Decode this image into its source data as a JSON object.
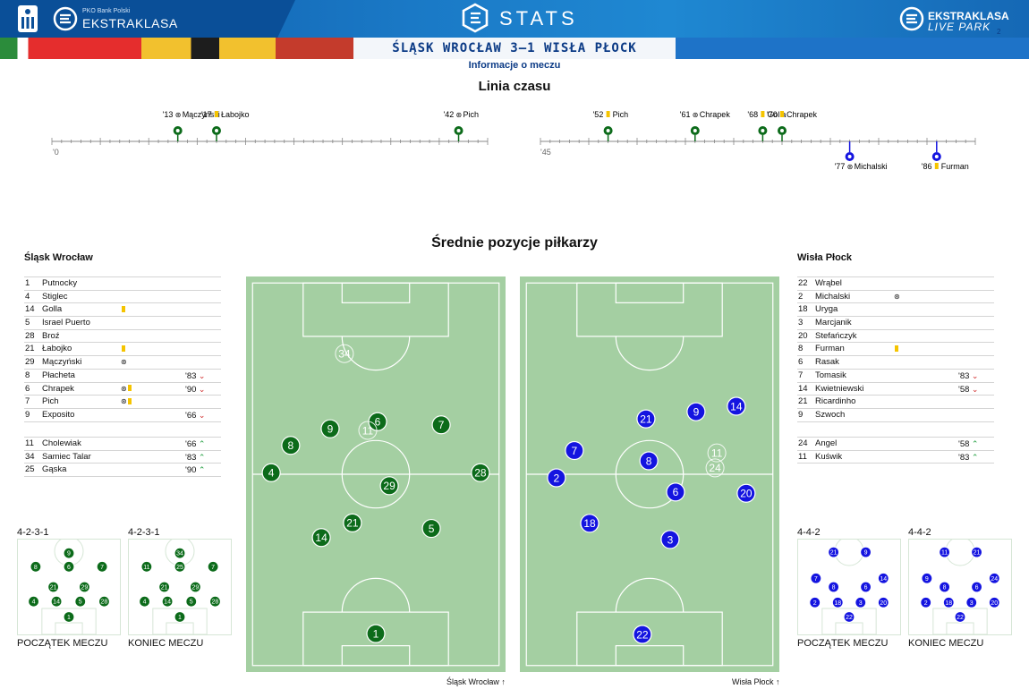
{
  "header": {
    "brand_small": "PKO Bank Polski",
    "brand": "EKSTRAKLASA",
    "stats": "STATS",
    "right_brand_1": "EKSTRAKLASA",
    "right_brand_2": "LIVE PARK",
    "badge": "2"
  },
  "match": {
    "title": "ŚLĄSK WROCŁAW 3–1 WISŁA PŁOCK",
    "subtitle": "Informacje o meczu"
  },
  "timeline": {
    "title": "Linia czasu",
    "half1_label": "'0",
    "half2_label": "'45",
    "home_events": [
      {
        "minute": 13,
        "time": "'13",
        "type": "goal",
        "player": "Mączyński"
      },
      {
        "minute": 17,
        "time": "'17",
        "type": "yellow",
        "player": "Łabojko"
      },
      {
        "minute": 42,
        "time": "'42",
        "type": "goal",
        "player": "Pich"
      },
      {
        "minute": 52,
        "time": "'52",
        "type": "yellow",
        "player": "Pich"
      },
      {
        "minute": 61,
        "time": "'61",
        "type": "goal",
        "player": "Chrapek"
      },
      {
        "minute": 68,
        "time": "'68",
        "type": "yellow",
        "player": "Golla"
      },
      {
        "minute": 70,
        "time": "'70",
        "type": "yellow",
        "player": "Chrapek"
      }
    ],
    "away_events": [
      {
        "minute": 77,
        "time": "'77",
        "type": "goal",
        "player": "Michalski"
      },
      {
        "minute": 86,
        "time": "'86",
        "type": "yellow",
        "player": "Furman"
      }
    ]
  },
  "positions_title": "Średnie pozycje piłkarzy",
  "home": {
    "name": "Śląsk Wrocław",
    "color": "#0c6b1a",
    "starters": [
      {
        "num": "1",
        "name": "Putnocky",
        "ev": "",
        "sub": ""
      },
      {
        "num": "4",
        "name": "Stiglec",
        "ev": "",
        "sub": ""
      },
      {
        "num": "14",
        "name": "Golla",
        "ev": "Y",
        "sub": ""
      },
      {
        "num": "5",
        "name": "Israel Puerto",
        "ev": "",
        "sub": ""
      },
      {
        "num": "28",
        "name": "Broź",
        "ev": "",
        "sub": ""
      },
      {
        "num": "21",
        "name": "Łabojko",
        "ev": "Y",
        "sub": ""
      },
      {
        "num": "29",
        "name": "Mączyński",
        "ev": "G",
        "sub": ""
      },
      {
        "num": "8",
        "name": "Płacheta",
        "ev": "",
        "sub": "'83",
        "dir": "down"
      },
      {
        "num": "6",
        "name": "Chrapek",
        "ev": "GY",
        "sub": "'90",
        "dir": "down"
      },
      {
        "num": "7",
        "name": "Pich",
        "ev": "GY",
        "sub": ""
      },
      {
        "num": "9",
        "name": "Exposito",
        "ev": "",
        "sub": "'66",
        "dir": "down"
      }
    ],
    "subs": [
      {
        "num": "11",
        "name": "Cholewiak",
        "ev": "",
        "sub": "'66",
        "dir": "up"
      },
      {
        "num": "34",
        "name": "Samiec Talar",
        "ev": "",
        "sub": "'83",
        "dir": "up"
      },
      {
        "num": "25",
        "name": "Gąska",
        "ev": "",
        "sub": "'90",
        "dir": "up"
      }
    ],
    "formation_start": "4-2-3-1",
    "formation_end": "4-2-3-1",
    "label_start": "POCZĄTEK MECZU",
    "label_end": "KONIEC MECZU",
    "footer": "Śląsk Wrocław"
  },
  "away": {
    "name": "Wisła Płock",
    "color": "#1414e0",
    "starters": [
      {
        "num": "22",
        "name": "Wrąbel",
        "ev": "",
        "sub": ""
      },
      {
        "num": "2",
        "name": "Michalski",
        "ev": "G",
        "sub": ""
      },
      {
        "num": "18",
        "name": "Uryga",
        "ev": "",
        "sub": ""
      },
      {
        "num": "3",
        "name": "Marcjanik",
        "ev": "",
        "sub": ""
      },
      {
        "num": "20",
        "name": "Stefańczyk",
        "ev": "",
        "sub": ""
      },
      {
        "num": "8",
        "name": "Furman",
        "ev": "Y",
        "sub": ""
      },
      {
        "num": "6",
        "name": "Rasak",
        "ev": "",
        "sub": ""
      },
      {
        "num": "7",
        "name": "Tomasik",
        "ev": "",
        "sub": "'83",
        "dir": "down"
      },
      {
        "num": "14",
        "name": "Kwietniewski",
        "ev": "",
        "sub": "'58",
        "dir": "down"
      },
      {
        "num": "21",
        "name": "Ricardinho",
        "ev": "",
        "sub": ""
      },
      {
        "num": "9",
        "name": "Szwoch",
        "ev": "",
        "sub": ""
      }
    ],
    "subs": [
      {
        "num": "24",
        "name": "Angel",
        "ev": "",
        "sub": "'58",
        "dir": "up"
      },
      {
        "num": "11",
        "name": "Kuświk",
        "ev": "",
        "sub": "'83",
        "dir": "up"
      }
    ],
    "formation_start": "4-4-2",
    "formation_end": "4-4-2",
    "label_start": "POCZĄTEK MECZU",
    "label_end": "KONIEC MECZU",
    "footer": "Wisła Płock"
  }
}
